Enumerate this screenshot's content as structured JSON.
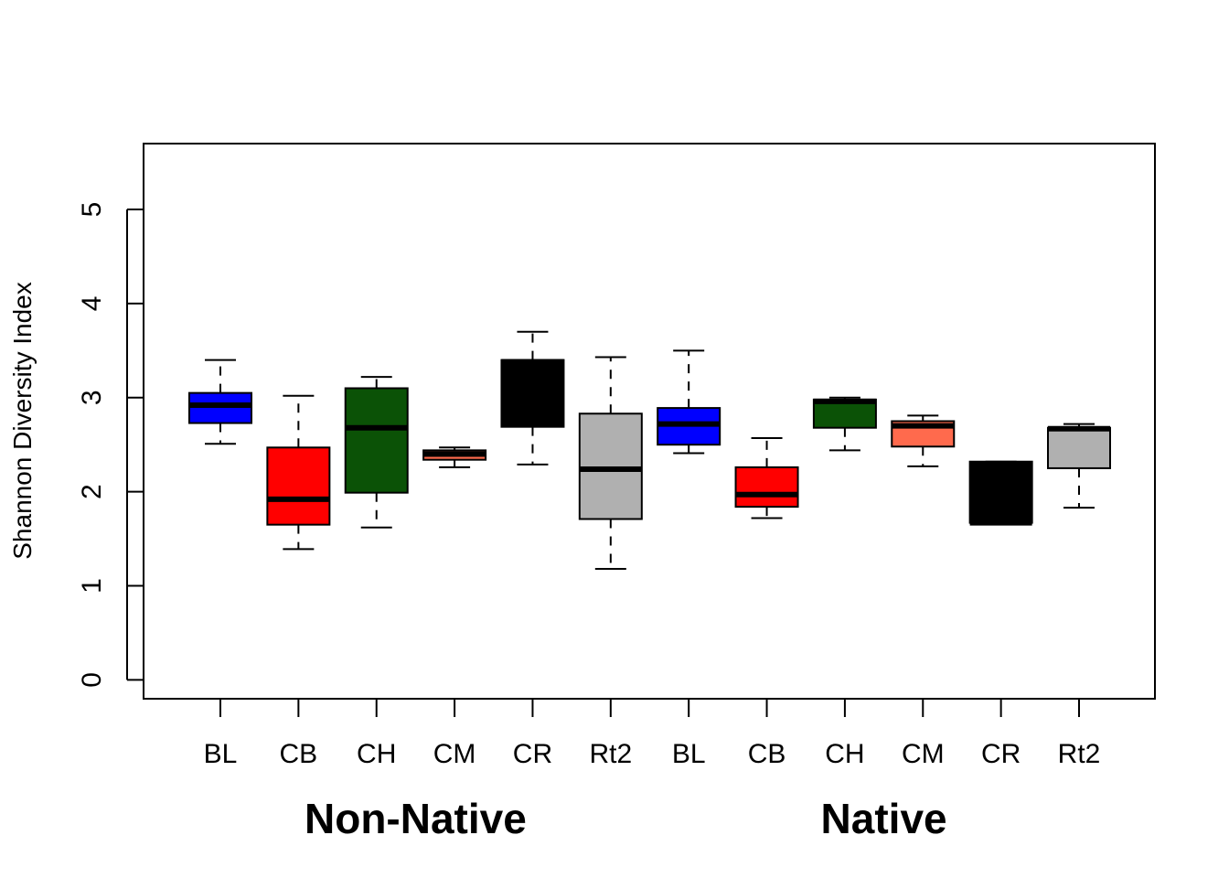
{
  "chart_data": {
    "type": "boxplot",
    "ylabel": "Shannon Diversity Index",
    "ylim": [
      -0.2,
      5.7
    ],
    "yticks": [
      0,
      1,
      2,
      3,
      4,
      5
    ],
    "grid": false,
    "groups": [
      {
        "label": "Non-Native",
        "boxes": [
          {
            "category": "BL",
            "color": "#0000FF",
            "whisker_low": 2.51,
            "q1": 2.73,
            "median": 2.92,
            "q3": 3.05,
            "whisker_high": 3.4
          },
          {
            "category": "CB",
            "color": "#FF0000",
            "whisker_low": 1.39,
            "q1": 1.65,
            "median": 1.92,
            "q3": 2.47,
            "whisker_high": 3.02
          },
          {
            "category": "CH",
            "color": "#0B5206",
            "whisker_low": 1.62,
            "q1": 1.99,
            "median": 2.68,
            "q3": 3.1,
            "whisker_high": 3.22
          },
          {
            "category": "CM",
            "color": "#FF6A4D",
            "whisker_low": 2.26,
            "q1": 2.34,
            "median": 2.4,
            "q3": 2.44,
            "whisker_high": 2.47
          },
          {
            "category": "CR",
            "color": "#000000",
            "whisker_low": 2.29,
            "q1": 2.69,
            "median": 3.38,
            "q3": 3.4,
            "whisker_high": 3.7
          },
          {
            "category": "Rt2",
            "color": "#B0B0B0",
            "whisker_low": 1.18,
            "q1": 1.71,
            "median": 2.24,
            "q3": 2.83,
            "whisker_high": 3.43
          }
        ]
      },
      {
        "label": "Native",
        "boxes": [
          {
            "category": "BL",
            "color": "#0000FF",
            "whisker_low": 2.41,
            "q1": 2.5,
            "median": 2.72,
            "q3": 2.89,
            "whisker_high": 3.5
          },
          {
            "category": "CB",
            "color": "#FF0000",
            "whisker_low": 1.72,
            "q1": 1.84,
            "median": 1.97,
            "q3": 2.26,
            "whisker_high": 2.57
          },
          {
            "category": "CH",
            "color": "#0B5206",
            "whisker_low": 2.44,
            "q1": 2.68,
            "median": 2.96,
            "q3": 2.98,
            "whisker_high": 3.0
          },
          {
            "category": "CM",
            "color": "#FF6A4D",
            "whisker_low": 2.27,
            "q1": 2.48,
            "median": 2.7,
            "q3": 2.75,
            "whisker_high": 2.81
          },
          {
            "category": "CR",
            "color": "#000000",
            "whisker_low": 1.67,
            "q1": 1.67,
            "median": 1.67,
            "q3": 2.32,
            "whisker_high": 2.32
          },
          {
            "category": "Rt2",
            "color": "#B0B0B0",
            "whisker_low": 1.83,
            "q1": 2.25,
            "median": 2.67,
            "q3": 2.68,
            "whisker_high": 2.72
          }
        ]
      }
    ]
  }
}
